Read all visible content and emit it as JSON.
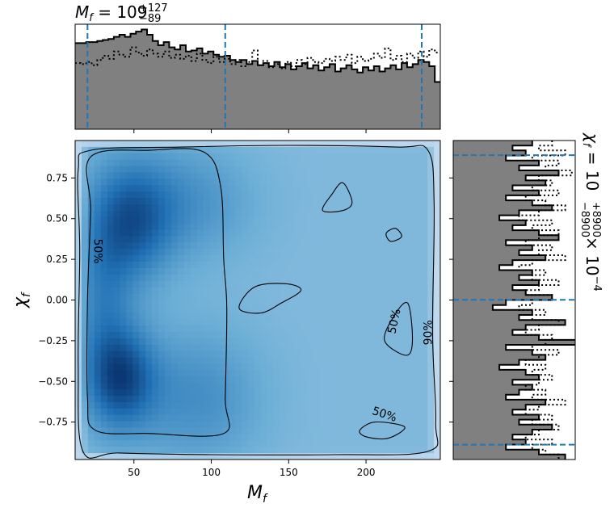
{
  "chart_data": {
    "type": "corner",
    "mass_title": {
      "base": "M",
      "sub": "f",
      "eq": " = 109",
      "sup": "+127",
      "low": "−89"
    },
    "spin_title": {
      "base": "χ",
      "sub": "f",
      "eq": " = 10",
      "sup": "+8900",
      "low": "−8900",
      "tail": " × 10",
      "exp": "−4"
    },
    "xlabel": {
      "base": "M",
      "sub": "f"
    },
    "ylabel": {
      "base": "χ",
      "sub": "f"
    },
    "xlim": [
      12,
      248
    ],
    "ylim": [
      -0.98,
      0.98
    ],
    "x_ticks": [
      50,
      100,
      150,
      200
    ],
    "x_tick_labels": [
      "50",
      "100",
      "150",
      "200"
    ],
    "y_ticks": [
      0.75,
      0.5,
      0.25,
      0.0,
      -0.25,
      -0.5,
      -0.75
    ],
    "y_tick_labels": [
      "0.75",
      "0.50",
      "0.25",
      "0.00",
      "−0.25",
      "−0.50",
      "−0.75"
    ],
    "mass_quantiles": [
      20,
      109,
      236
    ],
    "spin_quantiles": [
      0.89,
      0.001,
      -0.889
    ],
    "contour_labels": [
      "50%",
      "50%",
      "50%",
      "90%"
    ],
    "colors": {
      "hist_fill": "#808080",
      "quantile_line": "#1f77b4",
      "density_dark": "#08306b",
      "density_light": "#f7fbff"
    },
    "mass_hist": [
      0.82,
      0.82,
      0.83,
      0.83,
      0.84,
      0.85,
      0.86,
      0.88,
      0.9,
      0.88,
      0.91,
      0.93,
      0.95,
      0.9,
      0.84,
      0.8,
      0.83,
      0.78,
      0.76,
      0.8,
      0.74,
      0.75,
      0.77,
      0.72,
      0.74,
      0.71,
      0.69,
      0.7,
      0.66,
      0.64,
      0.66,
      0.62,
      0.65,
      0.61,
      0.63,
      0.6,
      0.64,
      0.59,
      0.62,
      0.57,
      0.6,
      0.63,
      0.58,
      0.61,
      0.56,
      0.59,
      0.62,
      0.55,
      0.58,
      0.61,
      0.57,
      0.54,
      0.59,
      0.56,
      0.6,
      0.55,
      0.58,
      0.61,
      0.57,
      0.63,
      0.59,
      0.62,
      0.66,
      0.64,
      0.6,
      0.45
    ],
    "mass_hist_prior": [
      0.63,
      0.62,
      0.64,
      0.61,
      0.66,
      0.7,
      0.67,
      0.74,
      0.71,
      0.69,
      0.78,
      0.73,
      0.7,
      0.76,
      0.72,
      0.69,
      0.74,
      0.68,
      0.71,
      0.67,
      0.7,
      0.65,
      0.72,
      0.66,
      0.63,
      0.69,
      0.64,
      0.67,
      0.62,
      0.66,
      0.6,
      0.64,
      0.75,
      0.61,
      0.65,
      0.59,
      0.62,
      0.58,
      0.64,
      0.6,
      0.66,
      0.62,
      0.68,
      0.64,
      0.63,
      0.67,
      0.65,
      0.69,
      0.66,
      0.71,
      0.63,
      0.69,
      0.65,
      0.67,
      0.72,
      0.68,
      0.77,
      0.66,
      0.7,
      0.64,
      0.72,
      0.68,
      0.74,
      0.69,
      0.76,
      0.73
    ],
    "spin_hist": [
      0.12,
      0.09,
      0.11,
      0.08,
      0.13,
      0.1,
      0.16,
      0.11,
      0.14,
      0.09,
      0.13,
      0.08,
      0.12,
      0.15,
      0.1,
      0.07,
      0.11,
      0.09,
      0.13,
      0.16,
      0.08,
      0.12,
      0.1,
      0.14,
      0.09,
      0.07,
      0.12,
      0.1,
      0.13,
      0.09,
      0.11,
      0.15,
      0.08,
      0.06,
      0.12,
      0.1,
      0.17,
      0.11,
      0.09,
      0.13,
      0.2,
      0.08,
      0.12,
      0.14,
      0.1,
      0.07,
      0.11,
      0.13,
      0.09,
      0.12,
      0.1,
      0.08,
      0.14,
      0.11,
      0.09,
      0.13,
      0.1,
      0.15,
      0.12,
      0.09,
      0.11,
      0.08,
      0.13,
      0.17
    ],
    "spin_hist_prior": [
      0.15,
      0.13,
      0.17,
      0.12,
      0.16,
      0.14,
      0.18,
      0.13,
      0.15,
      0.12,
      0.16,
      0.11,
      0.14,
      0.17,
      0.13,
      0.1,
      0.15,
      0.12,
      0.16,
      0.13,
      0.11,
      0.15,
      0.13,
      0.17,
      0.12,
      0.1,
      0.14,
      0.12,
      0.16,
      0.13,
      0.11,
      0.15,
      0.12,
      0.1,
      0.14,
      0.12,
      0.16,
      0.13,
      0.11,
      0.15,
      0.14,
      0.12,
      0.16,
      0.13,
      0.11,
      0.14,
      0.12,
      0.15,
      0.13,
      0.11,
      0.14,
      0.12,
      0.17,
      0.13,
      0.11,
      0.15,
      0.12,
      0.16,
      0.13,
      0.11,
      0.15,
      0.12,
      0.14,
      0.16
    ],
    "density_peaks": [
      {
        "m": 42,
        "s": -0.48,
        "sm": 16,
        "ss": 0.22,
        "a": 1.0
      },
      {
        "m": 50,
        "s": 0.48,
        "sm": 18,
        "ss": 0.26,
        "a": 0.85
      },
      {
        "m": 30,
        "s": 0.05,
        "sm": 14,
        "ss": 0.45,
        "a": 0.55
      },
      {
        "m": 85,
        "s": 0.6,
        "sm": 30,
        "ss": 0.25,
        "a": 0.45
      },
      {
        "m": 90,
        "s": -0.6,
        "sm": 30,
        "ss": 0.3,
        "a": 0.5
      }
    ],
    "contours": [
      {
        "level": "90%",
        "points": [
          [
            17,
            -0.93
          ],
          [
            14,
            -0.4
          ],
          [
            15,
            0.3
          ],
          [
            14,
            0.8
          ],
          [
            22,
            0.92
          ],
          [
            80,
            0.94
          ],
          [
            150,
            0.95
          ],
          [
            220,
            0.94
          ],
          [
            240,
            0.92
          ],
          [
            244,
            0.6
          ],
          [
            243,
            -0.2
          ],
          [
            245,
            -0.75
          ],
          [
            240,
            -0.93
          ],
          [
            180,
            -0.95
          ],
          [
            100,
            -0.95
          ],
          [
            40,
            -0.94
          ]
        ]
      },
      {
        "level": "50%",
        "points": [
          [
            22,
            0.88
          ],
          [
            60,
            0.92
          ],
          [
            95,
            0.91
          ],
          [
            106,
            0.7
          ],
          [
            108,
            0.25
          ],
          [
            110,
            -0.05
          ],
          [
            109,
            -0.6
          ],
          [
            108,
            -0.82
          ],
          [
            60,
            -0.82
          ],
          [
            25,
            -0.8
          ],
          [
            20,
            -0.6
          ],
          [
            20,
            0.0
          ],
          [
            22,
            0.55
          ]
        ]
      },
      {
        "level": "50%",
        "points": [
          [
            118,
            -0.05
          ],
          [
            128,
            0.08
          ],
          [
            148,
            0.1
          ],
          [
            158,
            0.06
          ],
          [
            145,
            -0.02
          ],
          [
            132,
            -0.08
          ]
        ]
      },
      {
        "level": "50%",
        "points": [
          [
            172,
            0.55
          ],
          [
            178,
            0.65
          ],
          [
            185,
            0.72
          ],
          [
            191,
            0.6
          ],
          [
            185,
            0.55
          ]
        ]
      },
      {
        "level": "50%",
        "points": [
          [
            213,
            0.41
          ],
          [
            219,
            0.44
          ],
          [
            223,
            0.39
          ],
          [
            216,
            0.36
          ]
        ]
      },
      {
        "level": "50%",
        "points": [
          [
            212,
            -0.25
          ],
          [
            218,
            -0.1
          ],
          [
            227,
            -0.02
          ],
          [
            230,
            -0.25
          ],
          [
            226,
            -0.34
          ]
        ]
      },
      {
        "level": "50%",
        "points": [
          [
            196,
            -0.8
          ],
          [
            206,
            -0.75
          ],
          [
            225,
            -0.78
          ],
          [
            214,
            -0.85
          ],
          [
            200,
            -0.84
          ]
        ]
      }
    ]
  }
}
